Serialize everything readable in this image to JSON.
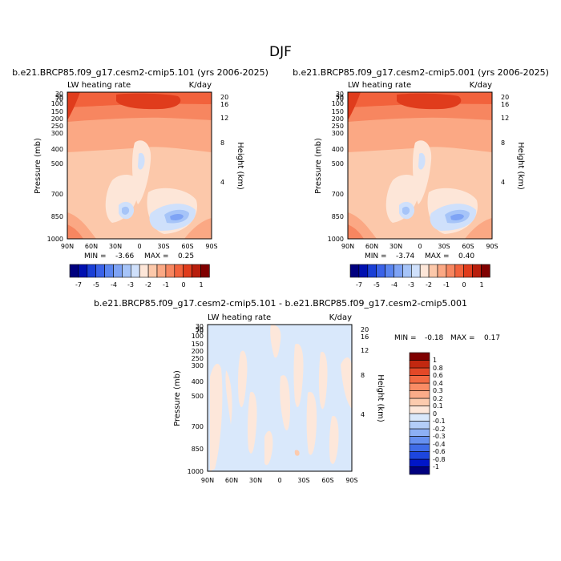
{
  "page": {
    "title": "DJF"
  },
  "colors": {
    "panel_palette": [
      "#00007f",
      "#0010b0",
      "#1a3fd6",
      "#3a62e8",
      "#5a85f0",
      "#7ea3f5",
      "#a6c4f8",
      "#cfe0fb",
      "#fde6d8",
      "#fcc8aa",
      "#fba884",
      "#f78660",
      "#f2623c",
      "#e03c1c",
      "#b81e0c",
      "#800000"
    ],
    "diff_palette": [
      "#00007f",
      "#0016c8",
      "#1d46de",
      "#3f6ce8",
      "#6690f0",
      "#8db0f5",
      "#b3cdf8",
      "#d9e8fb",
      "#fde7da",
      "#fccbae",
      "#fbac89",
      "#f98c65",
      "#f26a43",
      "#e34827",
      "#c22810",
      "#7f0000"
    ]
  },
  "chart_data": [
    {
      "id": "case1",
      "type": "heatmap",
      "title": "b.e21.BRCP85.f09_g17.cesm2-cmip5.101 (yrs 2006-2025)",
      "subtitle_left": "LW heating rate",
      "subtitle_right": "K/day",
      "ylabel": "Pressure (mb)",
      "ylabel_right": "Height (km)",
      "x_ticks": [
        "90N",
        "60N",
        "30N",
        "0",
        "30S",
        "60S",
        "90S"
      ],
      "y_ticks": [
        "30",
        "50",
        "70",
        "100",
        "150",
        "200",
        "250",
        "300",
        "400",
        "500",
        "700",
        "850",
        "1000"
      ],
      "height_ticks": [
        "20",
        "16",
        "12",
        "8",
        "4"
      ],
      "min_label": "MIN =",
      "min": "-3.66",
      "max_label": "MAX =",
      "max": "0.25",
      "colorbar_labels": [
        "-7",
        "-5",
        "-4",
        "-3",
        "-2",
        "-1",
        "0",
        "1"
      ]
    },
    {
      "id": "case2",
      "type": "heatmap",
      "title": "b.e21.BRCP85.f09_g17.cesm2-cmip5.001 (yrs 2006-2025)",
      "subtitle_left": "LW heating rate",
      "subtitle_right": "K/day",
      "ylabel": "Pressure (mb)",
      "ylabel_right": "Height (km)",
      "x_ticks": [
        "90N",
        "60N",
        "30N",
        "0",
        "30S",
        "60S",
        "90S"
      ],
      "y_ticks": [
        "30",
        "50",
        "70",
        "100",
        "150",
        "200",
        "250",
        "300",
        "400",
        "500",
        "700",
        "850",
        "1000"
      ],
      "height_ticks": [
        "20",
        "16",
        "12",
        "8",
        "4"
      ],
      "min_label": "MIN =",
      "min": "-3.74",
      "max_label": "MAX =",
      "max": "0.40",
      "colorbar_labels": [
        "-7",
        "-5",
        "-4",
        "-3",
        "-2",
        "-1",
        "0",
        "1"
      ]
    },
    {
      "id": "difference",
      "type": "heatmap",
      "title": "b.e21.BRCP85.f09_g17.cesm2-cmip5.101 - b.e21.BRCP85.f09_g17.cesm2-cmip5.001",
      "subtitle_left": "LW heating rate",
      "subtitle_right": "K/day",
      "ylabel": "Pressure (mb)",
      "ylabel_right": "Height (km)",
      "x_ticks": [
        "90N",
        "60N",
        "30N",
        "0",
        "30S",
        "60S",
        "90S"
      ],
      "y_ticks": [
        "30",
        "50",
        "70",
        "100",
        "150",
        "200",
        "250",
        "300",
        "400",
        "500",
        "700",
        "850",
        "1000"
      ],
      "height_ticks": [
        "20",
        "16",
        "12",
        "8",
        "4"
      ],
      "min_label": "MIN =",
      "min": "-0.18",
      "max_label": "MAX =",
      "max": "0.17",
      "colorbar_labels": [
        "1",
        "0.8",
        "0.6",
        "0.4",
        "0.3",
        "0.2",
        "0.1",
        "0",
        "-0.1",
        "-0.2",
        "-0.3",
        "-0.4",
        "-0.6",
        "-0.8",
        "-1"
      ]
    }
  ]
}
